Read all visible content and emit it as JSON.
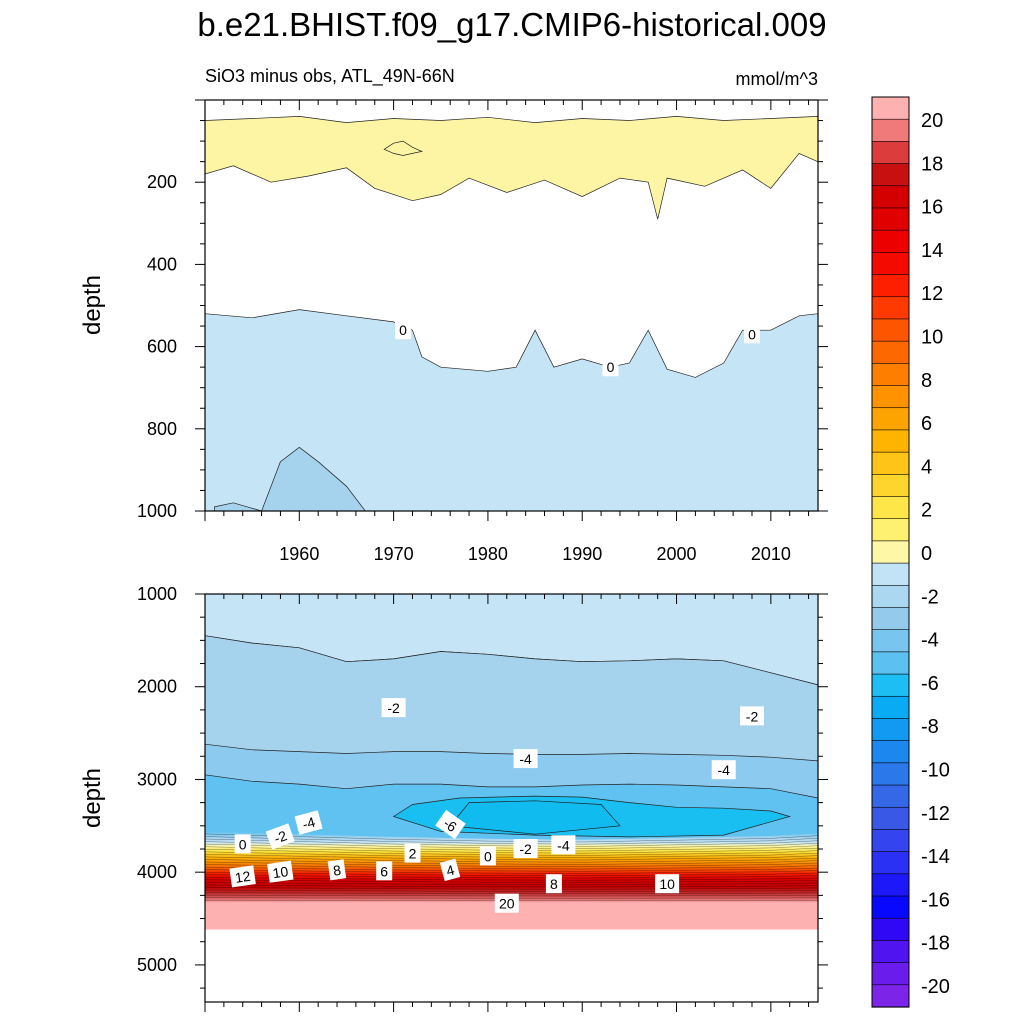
{
  "title": "b.e21.BHIST.f09_g17.CMIP6-historical.009",
  "units": "mmol/m^3",
  "chart_data": [
    {
      "type": "contour",
      "panel": "top",
      "subtitle": "SiO3 minus obs, ATL_49N-66N",
      "ylabel": "depth",
      "x_range": [
        1950,
        2015
      ],
      "y_range": [
        0,
        1000
      ],
      "y_reversed": true,
      "xticks": [
        1960,
        1970,
        1980,
        1990,
        2000,
        2010
      ],
      "yticks": [
        200,
        400,
        600,
        800,
        1000
      ],
      "ytick_labels": [
        "200",
        "400",
        "600",
        "800",
        "1000"
      ],
      "regions": [
        {
          "range": "0 to 2",
          "color": "#fdf5a4",
          "top": [
            [
              1950,
              50
            ],
            [
              1955,
              45
            ],
            [
              1960,
              40
            ],
            [
              1965,
              55
            ],
            [
              1970,
              45
            ],
            [
              1975,
              50
            ],
            [
              1980,
              42
            ],
            [
              1985,
              55
            ],
            [
              1990,
              45
            ],
            [
              1995,
              50
            ],
            [
              2000,
              40
            ],
            [
              2005,
              50
            ],
            [
              2010,
              45
            ],
            [
              2015,
              40
            ]
          ],
          "bottom": [
            [
              1950,
              180
            ],
            [
              1953,
              160
            ],
            [
              1957,
              200
            ],
            [
              1961,
              185
            ],
            [
              1965,
              165
            ],
            [
              1968,
              215
            ],
            [
              1972,
              245
            ],
            [
              1975,
              230
            ],
            [
              1978,
              190
            ],
            [
              1982,
              225
            ],
            [
              1986,
              195
            ],
            [
              1990,
              235
            ],
            [
              1994,
              190
            ],
            [
              1997,
              200
            ],
            [
              1998,
              290
            ],
            [
              1999,
              190
            ],
            [
              2003,
              210
            ],
            [
              2007,
              170
            ],
            [
              2010,
              215
            ],
            [
              2013,
              130
            ],
            [
              2015,
              150
            ]
          ]
        },
        {
          "range": "0 to 2 (patch)",
          "color": "#fdf5a4",
          "top": [
            [
              1969,
              120
            ],
            [
              1970,
              105
            ],
            [
              1971,
              100
            ],
            [
              1972,
              115
            ],
            [
              1973,
              125
            ]
          ],
          "bottom": [
            [
              1969,
              120
            ],
            [
              1970,
              130
            ],
            [
              1971,
              135
            ],
            [
              1972,
              130
            ],
            [
              1973,
              125
            ]
          ]
        },
        {
          "range": "0 to -2",
          "color": "#c5e4f6",
          "top": [
            [
              1950,
              520
            ],
            [
              1955,
              530
            ],
            [
              1960,
              510
            ],
            [
              1965,
              525
            ],
            [
              1970,
              540
            ],
            [
              1972,
              560
            ],
            [
              1973,
              625
            ],
            [
              1975,
              650
            ],
            [
              1980,
              660
            ],
            [
              1983,
              650
            ],
            [
              1985,
              560
            ],
            [
              1987,
              650
            ],
            [
              1990,
              630
            ],
            [
              1993,
              650
            ],
            [
              1995,
              640
            ],
            [
              1997,
              560
            ],
            [
              1999,
              655
            ],
            [
              2002,
              675
            ],
            [
              2005,
              640
            ],
            [
              2007,
              560
            ],
            [
              2010,
              560
            ],
            [
              2013,
              525
            ],
            [
              2015,
              520
            ]
          ],
          "bottom": [
            [
              1950,
              1000
            ],
            [
              2015,
              1000
            ]
          ]
        },
        {
          "range": "-2 to -4",
          "color": "#a5d3ee",
          "top": [
            [
              1951,
              990
            ],
            [
              1953,
              980
            ],
            [
              1956,
              1000
            ],
            [
              1958,
              880
            ],
            [
              1960,
              845
            ],
            [
              1962,
              880
            ],
            [
              1965,
              940
            ],
            [
              1967,
              1000
            ]
          ],
          "bottom": [
            [
              1951,
              1000
            ],
            [
              1967,
              1000
            ]
          ]
        }
      ],
      "contour_labels": [
        {
          "text": "0",
          "x": 1971,
          "y": 560,
          "angle": 0
        },
        {
          "text": "0",
          "x": 1993,
          "y": 650,
          "angle": 0
        },
        {
          "text": "0",
          "x": 2008,
          "y": 570,
          "angle": 0
        }
      ]
    },
    {
      "type": "contour",
      "panel": "bottom",
      "ylabel": "depth",
      "x_range": [
        1950,
        2015
      ],
      "y_range": [
        1000,
        5400
      ],
      "y_reversed": true,
      "xticks": [
        1960,
        1970,
        1980,
        1990,
        2000,
        2010
      ],
      "yticks": [
        1000,
        2000,
        3000,
        4000,
        5000
      ],
      "ytick_labels": [
        "1000",
        "2000",
        "3000",
        "4000",
        "5000"
      ],
      "bottom_depth": 4620,
      "regions": [
        {
          "range": "0 to -2",
          "color": "#c5e4f6",
          "top": [
            [
              1950,
              1000
            ],
            [
              2015,
              1000
            ]
          ],
          "bottom": [
            [
              1950,
              1450
            ],
            [
              1955,
              1530
            ],
            [
              1960,
              1580
            ],
            [
              1965,
              1730
            ],
            [
              1970,
              1700
            ],
            [
              1975,
              1620
            ],
            [
              1980,
              1650
            ],
            [
              1985,
              1700
            ],
            [
              1990,
              1730
            ],
            [
              1995,
              1720
            ],
            [
              2000,
              1700
            ],
            [
              2005,
              1720
            ],
            [
              2010,
              1850
            ],
            [
              2015,
              1980
            ]
          ]
        },
        {
          "range": "-2 to -4",
          "color": "#a5d3ee",
          "top": [
            [
              1950,
              1450
            ],
            [
              1955,
              1530
            ],
            [
              1960,
              1580
            ],
            [
              1965,
              1730
            ],
            [
              1970,
              1700
            ],
            [
              1975,
              1620
            ],
            [
              1980,
              1650
            ],
            [
              1985,
              1700
            ],
            [
              1990,
              1730
            ],
            [
              1995,
              1720
            ],
            [
              2000,
              1700
            ],
            [
              2005,
              1720
            ],
            [
              2010,
              1850
            ],
            [
              2015,
              1980
            ]
          ],
          "bottom": [
            [
              1950,
              4200
            ],
            [
              2015,
              4200
            ]
          ]
        },
        {
          "range": "-4 to -6",
          "color": "#8ccaef",
          "top": [
            [
              1950,
              2620
            ],
            [
              1955,
              2680
            ],
            [
              1960,
              2700
            ],
            [
              1965,
              2720
            ],
            [
              1970,
              2700
            ],
            [
              1975,
              2700
            ],
            [
              1980,
              2720
            ],
            [
              1985,
              2730
            ],
            [
              1990,
              2730
            ],
            [
              1995,
              2720
            ],
            [
              2000,
              2730
            ],
            [
              2005,
              2740
            ],
            [
              2010,
              2760
            ],
            [
              2015,
              2800
            ]
          ],
          "bottom": [
            [
              1950,
              4200
            ],
            [
              2015,
              4200
            ]
          ]
        },
        {
          "range": "-6 to -8",
          "color": "#5fc2f0",
          "top": [
            [
              1950,
              2950
            ],
            [
              1955,
              3020
            ],
            [
              1960,
              3050
            ],
            [
              1965,
              3100
            ],
            [
              1970,
              3050
            ],
            [
              1975,
              3050
            ],
            [
              1980,
              3080
            ],
            [
              1985,
              3080
            ],
            [
              1990,
              3060
            ],
            [
              1995,
              3050
            ],
            [
              2000,
              3060
            ],
            [
              2005,
              3080
            ],
            [
              2010,
              3100
            ],
            [
              2015,
              3200
            ]
          ],
          "bottom": [
            [
              1950,
              4200
            ],
            [
              2015,
              4200
            ]
          ]
        },
        {
          "range": "-8 to -10",
          "color": "#1abff2",
          "top": [
            [
              1970,
              3400
            ],
            [
              1972,
              3270
            ],
            [
              1977,
              3200
            ],
            [
              1985,
              3180
            ],
            [
              1990,
              3190
            ],
            [
              1995,
              3250
            ],
            [
              2000,
              3300
            ],
            [
              2005,
              3310
            ],
            [
              2010,
              3340
            ],
            [
              2012,
              3400
            ]
          ],
          "bottom": [
            [
              1970,
              3400
            ],
            [
              1975,
              3560
            ],
            [
              1985,
              3600
            ],
            [
              1995,
              3620
            ],
            [
              2005,
              3600
            ],
            [
              2012,
              3400
            ]
          ]
        },
        {
          "range": "-8 to -10 (core)",
          "color": "#10bbf0",
          "top": [
            [
              1976,
              3500
            ],
            [
              1978,
              3250
            ],
            [
              1985,
              3230
            ],
            [
              1992,
              3270
            ],
            [
              1994,
              3500
            ]
          ],
          "bottom": [
            [
              1976,
              3500
            ],
            [
              1985,
              3590
            ],
            [
              1994,
              3500
            ]
          ]
        }
      ],
      "gradient": {
        "stops": [
          {
            "depth": 3560,
            "color": "#5fc2f0"
          },
          {
            "depth": 3630,
            "color": "#a5d3ee"
          },
          {
            "depth": 3680,
            "color": "#c5e4f6"
          },
          {
            "depth": 3720,
            "color": "#fdf5a4"
          },
          {
            "depth": 3780,
            "color": "#fbe13a"
          },
          {
            "depth": 3840,
            "color": "#f9b00a"
          },
          {
            "depth": 3900,
            "color": "#f88c00"
          },
          {
            "depth": 3960,
            "color": "#f55d00"
          },
          {
            "depth": 4020,
            "color": "#f21800"
          },
          {
            "depth": 4080,
            "color": "#d40000"
          },
          {
            "depth": 4160,
            "color": "#c30000"
          },
          {
            "depth": 4230,
            "color": "#c23030"
          },
          {
            "depth": 4290,
            "color": "#e06a6a"
          },
          {
            "depth": 4330,
            "color": "#feb1b1"
          }
        ],
        "boundary": [
          [
            1950,
            3560
          ],
          [
            1960,
            3590
          ],
          [
            1970,
            3620
          ],
          [
            1980,
            3640
          ],
          [
            1990,
            3650
          ],
          [
            2000,
            3630
          ],
          [
            2010,
            3610
          ],
          [
            2015,
            3580
          ]
        ]
      },
      "contour_labels": [
        {
          "text": "-2",
          "x": 1970,
          "y": 2230,
          "angle": 0
        },
        {
          "text": "-2",
          "x": 2008,
          "y": 2320,
          "angle": 0
        },
        {
          "text": "-4",
          "x": 1984,
          "y": 2780,
          "angle": 0
        },
        {
          "text": "-4",
          "x": 2005,
          "y": 2900,
          "angle": 0
        },
        {
          "text": "-4",
          "x": 1961,
          "y": 3470,
          "angle": -15
        },
        {
          "text": "-6",
          "x": 1976,
          "y": 3490,
          "angle": 35
        },
        {
          "text": "0",
          "x": 1954,
          "y": 3700,
          "angle": 0
        },
        {
          "text": "-2",
          "x": 1958,
          "y": 3620,
          "angle": -20
        },
        {
          "text": "2",
          "x": 1972,
          "y": 3800,
          "angle": 0
        },
        {
          "text": "0",
          "x": 1980,
          "y": 3830,
          "angle": 0
        },
        {
          "text": "-2",
          "x": 1984,
          "y": 3750,
          "angle": 0
        },
        {
          "text": "-4",
          "x": 1988,
          "y": 3710,
          "angle": 0
        },
        {
          "text": "12",
          "x": 1954,
          "y": 4050,
          "angle": -8
        },
        {
          "text": "10",
          "x": 1958,
          "y": 4000,
          "angle": -8
        },
        {
          "text": "8",
          "x": 1964,
          "y": 3980,
          "angle": -8
        },
        {
          "text": "6",
          "x": 1969,
          "y": 3990,
          "angle": 0
        },
        {
          "text": "4",
          "x": 1976,
          "y": 3980,
          "angle": -15
        },
        {
          "text": "8",
          "x": 1987,
          "y": 4130,
          "angle": 0
        },
        {
          "text": "10",
          "x": 1999,
          "y": 4130,
          "angle": 0
        },
        {
          "text": "20",
          "x": 1982,
          "y": 4340,
          "angle": 0
        }
      ]
    }
  ],
  "colorbar": {
    "labels": [
      "20",
      "18",
      "16",
      "14",
      "12",
      "10",
      "8",
      "6",
      "4",
      "2",
      "0",
      "-2",
      "-4",
      "-6",
      "-8",
      "-10",
      "-12",
      "-14",
      "-16",
      "-18",
      "-20"
    ],
    "colors": [
      "#feb1b1",
      "#f07a7a",
      "#dd3c3c",
      "#c81010",
      "#d40000",
      "#e00000",
      "#ec0000",
      "#f50a00",
      "#fe1f00",
      "#fe3a00",
      "#fe5500",
      "#fe6800",
      "#fe7e00",
      "#fe9200",
      "#fea400",
      "#feb400",
      "#fec418",
      "#fed52c",
      "#fee548",
      "#fef070",
      "#fef7a6",
      "#c2e3f5",
      "#acd7f1",
      "#94cbed",
      "#78c5f0",
      "#5cc0f1",
      "#1cbef3",
      "#08abf4",
      "#129af3",
      "#1c88ef",
      "#2a78ea",
      "#3468e6",
      "#3a58e6",
      "#3444ee",
      "#2a30f4",
      "#1c18fa",
      "#0808fe",
      "#3008f6",
      "#5014f0",
      "#6a1cec",
      "#7c24e8"
    ]
  }
}
